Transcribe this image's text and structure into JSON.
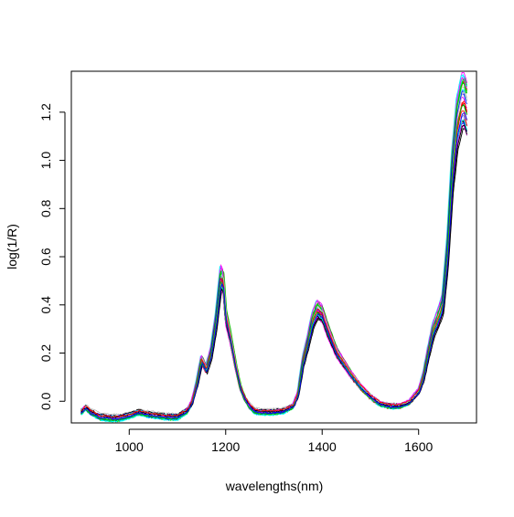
{
  "chart_data": {
    "type": "line",
    "title": "",
    "xlabel": "wavelengths(nm)",
    "ylabel": "log(1/R)",
    "xlim": [
      880,
      1720
    ],
    "ylim": [
      -0.09,
      1.37
    ],
    "x_ticks": [
      1000,
      1200,
      1400,
      1600
    ],
    "x_tick_labels": [
      "1000",
      "1200",
      "1400",
      "1600"
    ],
    "y_ticks": [
      0.0,
      0.2,
      0.4,
      0.6,
      0.8,
      1.0,
      1.2
    ],
    "y_tick_labels": [
      "0.0",
      "0.2",
      "0.4",
      "0.6",
      "0.8",
      "1.0",
      "1.2"
    ],
    "grid": false,
    "legend": "none",
    "series_colors": [
      "#000000",
      "#ff0000",
      "#00cd00",
      "#0000ff",
      "#00ffff",
      "#ff00ff",
      "#bebebe"
    ],
    "representative_spectrum": {
      "x": [
        900,
        910,
        920,
        940,
        960,
        980,
        1000,
        1020,
        1040,
        1060,
        1080,
        1100,
        1120,
        1130,
        1140,
        1150,
        1160,
        1170,
        1180,
        1190,
        1195,
        1200,
        1210,
        1220,
        1230,
        1240,
        1250,
        1260,
        1270,
        1280,
        1300,
        1320,
        1340,
        1350,
        1360,
        1370,
        1380,
        1390,
        1400,
        1410,
        1420,
        1430,
        1440,
        1460,
        1480,
        1500,
        1520,
        1540,
        1560,
        1580,
        1600,
        1610,
        1620,
        1630,
        1640,
        1650,
        1660,
        1670,
        1680,
        1690,
        1695,
        1700
      ],
      "y": [
        -0.045,
        -0.025,
        -0.045,
        -0.065,
        -0.07,
        -0.07,
        -0.06,
        -0.045,
        -0.055,
        -0.06,
        -0.065,
        -0.065,
        -0.04,
        -0.005,
        0.07,
        0.17,
        0.13,
        0.2,
        0.33,
        0.51,
        0.49,
        0.35,
        0.26,
        0.15,
        0.06,
        0.01,
        -0.02,
        -0.04,
        -0.045,
        -0.045,
        -0.045,
        -0.04,
        -0.02,
        0.03,
        0.16,
        0.24,
        0.33,
        0.38,
        0.36,
        0.3,
        0.25,
        0.2,
        0.17,
        0.11,
        0.06,
        0.02,
        -0.01,
        -0.02,
        -0.02,
        -0.005,
        0.04,
        0.1,
        0.2,
        0.29,
        0.34,
        0.4,
        0.62,
        0.95,
        1.15,
        1.24,
        1.24,
        1.2
      ],
      "spectrum_count": 32
    }
  }
}
